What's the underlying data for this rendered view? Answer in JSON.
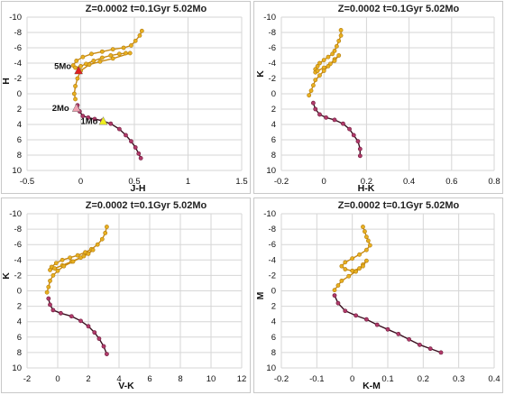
{
  "chart_data": [
    {
      "type": "scatter",
      "title": "Z=0.0002  t=0.1Gyr  5.02Mo",
      "xlabel": "J-H",
      "ylabel": "H",
      "xlim": [
        -0.5,
        1.5
      ],
      "ylim": [
        10,
        -10
      ],
      "xticks": [
        "-0.5",
        "0",
        "0.5",
        "1",
        "1.5"
      ],
      "yticks": [
        "-10",
        "-8",
        "-6",
        "-4",
        "-2",
        "0",
        "2",
        "4",
        "6",
        "8",
        "10"
      ],
      "grid": true,
      "series": [
        {
          "color": "#e8b020",
          "marker": "circle",
          "x": [
            0.57,
            0.55,
            0.51,
            0.47,
            0.4,
            0.3,
            0.2,
            0.1,
            0.02,
            -0.04,
            -0.07,
            -0.05,
            0.0,
            0.05,
            0.12,
            0.2,
            0.28,
            0.36,
            0.42,
            0.46,
            0.3,
            0.18,
            0.08,
            0.0,
            -0.03,
            -0.05,
            -0.06,
            -0.05
          ],
          "y": [
            -8.2,
            -7.6,
            -6.9,
            -6.3,
            -6.0,
            -5.8,
            -5.5,
            -5.2,
            -4.8,
            -4.3,
            -3.7,
            -3.4,
            -3.6,
            -3.9,
            -4.3,
            -4.7,
            -5.0,
            -5.2,
            -5.3,
            -5.3,
            -4.6,
            -4.2,
            -3.8,
            -3.0,
            -2.0,
            -1.0,
            0.0,
            0.7
          ]
        },
        {
          "color": "#b03a6a",
          "marker": "circle",
          "x": [
            -0.03,
            -0.01,
            0.02,
            0.07,
            0.13,
            0.2,
            0.28,
            0.36,
            0.42,
            0.47,
            0.51,
            0.54,
            0.56
          ],
          "y": [
            1.5,
            2.3,
            2.9,
            3.1,
            3.3,
            3.5,
            3.9,
            4.6,
            5.4,
            6.2,
            7.0,
            7.8,
            8.4
          ]
        }
      ],
      "markers": [
        {
          "label": "5Mo",
          "x": -0.02,
          "y": -3.0,
          "color": "#e02020",
          "shape": "triangle"
        },
        {
          "label": "2Mo",
          "x": -0.04,
          "y": 1.9,
          "color": "#f0a0b0",
          "shape": "triangle"
        },
        {
          "label": "1Mo",
          "x": 0.21,
          "y": 3.6,
          "color": "#f0f020",
          "shape": "triangle"
        }
      ]
    },
    {
      "type": "scatter",
      "title": "Z=0.0002  t=0.1Gyr  5.02Mo",
      "xlabel": "H-K",
      "ylabel": "K",
      "xlim": [
        -0.2,
        0.8
      ],
      "ylim": [
        10,
        -10
      ],
      "xticks": [
        "-0.2",
        "0",
        "0.2",
        "0.4",
        "0.6",
        "0.8"
      ],
      "yticks": [
        "-10",
        "-8",
        "-6",
        "-4",
        "-2",
        "0",
        "2",
        "4",
        "6",
        "8",
        "10"
      ],
      "grid": true,
      "series": [
        {
          "color": "#e8b020",
          "marker": "circle",
          "x": [
            0.08,
            0.08,
            0.07,
            0.06,
            0.05,
            0.04,
            0.02,
            0.0,
            -0.02,
            -0.03,
            -0.04,
            -0.04,
            -0.03,
            0.0,
            0.03,
            0.05,
            0.07,
            0.05,
            0.02,
            0.0,
            -0.02,
            -0.04,
            -0.05,
            -0.06,
            -0.07
          ],
          "y": [
            -8.3,
            -7.6,
            -6.9,
            -6.2,
            -5.6,
            -5.2,
            -4.8,
            -4.4,
            -4.0,
            -3.6,
            -3.2,
            -2.8,
            -3.0,
            -3.4,
            -3.9,
            -4.5,
            -5.0,
            -4.3,
            -3.6,
            -3.0,
            -2.4,
            -1.8,
            -1.1,
            -0.4,
            0.2
          ]
        },
        {
          "color": "#b03a6a",
          "marker": "circle",
          "x": [
            -0.05,
            -0.04,
            -0.02,
            0.01,
            0.05,
            0.09,
            0.12,
            0.14,
            0.16,
            0.17,
            0.17
          ],
          "y": [
            1.2,
            2.0,
            2.7,
            3.1,
            3.4,
            3.9,
            4.6,
            5.4,
            6.2,
            7.2,
            8.1
          ]
        }
      ]
    },
    {
      "type": "scatter",
      "title": "Z=0.0002  t=0.1Gyr  5.02Mo",
      "xlabel": "V-K",
      "ylabel": "K",
      "xlim": [
        -2,
        12
      ],
      "ylim": [
        10,
        -10
      ],
      "xticks": [
        "-2",
        "0",
        "2",
        "4",
        "6",
        "8",
        "10",
        "12"
      ],
      "yticks": [
        "-10",
        "-8",
        "-6",
        "-4",
        "-2",
        "0",
        "2",
        "4",
        "6",
        "8",
        "10"
      ],
      "grid": true,
      "series": [
        {
          "color": "#e8b020",
          "marker": "circle",
          "x": [
            3.2,
            3.1,
            2.9,
            2.6,
            2.2,
            1.8,
            1.3,
            0.8,
            0.3,
            -0.1,
            -0.4,
            -0.5,
            -0.2,
            0.3,
            0.9,
            1.5,
            2.0,
            2.3,
            1.7,
            1.0,
            0.4,
            0.0,
            -0.3,
            -0.5,
            -0.6,
            -0.7
          ],
          "y": [
            -8.3,
            -7.5,
            -6.7,
            -6.0,
            -5.4,
            -5.0,
            -4.6,
            -4.3,
            -4.0,
            -3.6,
            -3.1,
            -2.7,
            -2.9,
            -3.3,
            -3.8,
            -4.3,
            -4.8,
            -5.3,
            -4.5,
            -3.8,
            -3.2,
            -2.6,
            -2.0,
            -1.3,
            -0.5,
            0.2
          ]
        },
        {
          "color": "#b03a6a",
          "marker": "circle",
          "x": [
            -0.6,
            -0.5,
            -0.3,
            0.2,
            0.9,
            1.5,
            2.0,
            2.4,
            2.7,
            3.0,
            3.2
          ],
          "y": [
            1.0,
            1.8,
            2.5,
            2.9,
            3.3,
            3.9,
            4.6,
            5.4,
            6.2,
            7.2,
            8.2
          ]
        }
      ]
    },
    {
      "type": "scatter",
      "title": "Z=0.0002  t=0.1Gyr  5.02Mo",
      "xlabel": "K-M",
      "ylabel": "M",
      "xlim": [
        -0.2,
        0.4
      ],
      "ylim": [
        10,
        -10
      ],
      "xticks": [
        "-0.2",
        "-0.1",
        "0",
        "0.1",
        "0.2",
        "0.3",
        "0.4"
      ],
      "yticks": [
        "-10",
        "-8",
        "-6",
        "-4",
        "-2",
        "0",
        "2",
        "4",
        "6",
        "8",
        "10"
      ],
      "grid": true,
      "series": [
        {
          "color": "#e8b020",
          "marker": "circle",
          "x": [
            0.03,
            0.035,
            0.04,
            0.045,
            0.05,
            0.04,
            0.02,
            0.0,
            -0.02,
            -0.03,
            -0.02,
            0.0,
            0.02,
            0.03,
            0.04,
            0.03,
            0.01,
            -0.01,
            -0.03,
            -0.04,
            -0.05
          ],
          "y": [
            -8.3,
            -7.7,
            -7.0,
            -6.5,
            -5.9,
            -5.3,
            -4.7,
            -4.2,
            -3.7,
            -3.2,
            -2.8,
            -2.6,
            -2.9,
            -3.4,
            -3.9,
            -3.2,
            -2.5,
            -1.9,
            -1.3,
            -0.7,
            -0.1
          ]
        },
        {
          "color": "#b03a6a",
          "marker": "circle",
          "x": [
            -0.05,
            -0.04,
            -0.02,
            0.01,
            0.04,
            0.07,
            0.1,
            0.13,
            0.16,
            0.19,
            0.22,
            0.25
          ],
          "y": [
            0.6,
            1.6,
            2.6,
            3.2,
            3.7,
            4.4,
            5.0,
            5.6,
            6.3,
            7.0,
            7.5,
            8.0
          ]
        }
      ]
    }
  ]
}
